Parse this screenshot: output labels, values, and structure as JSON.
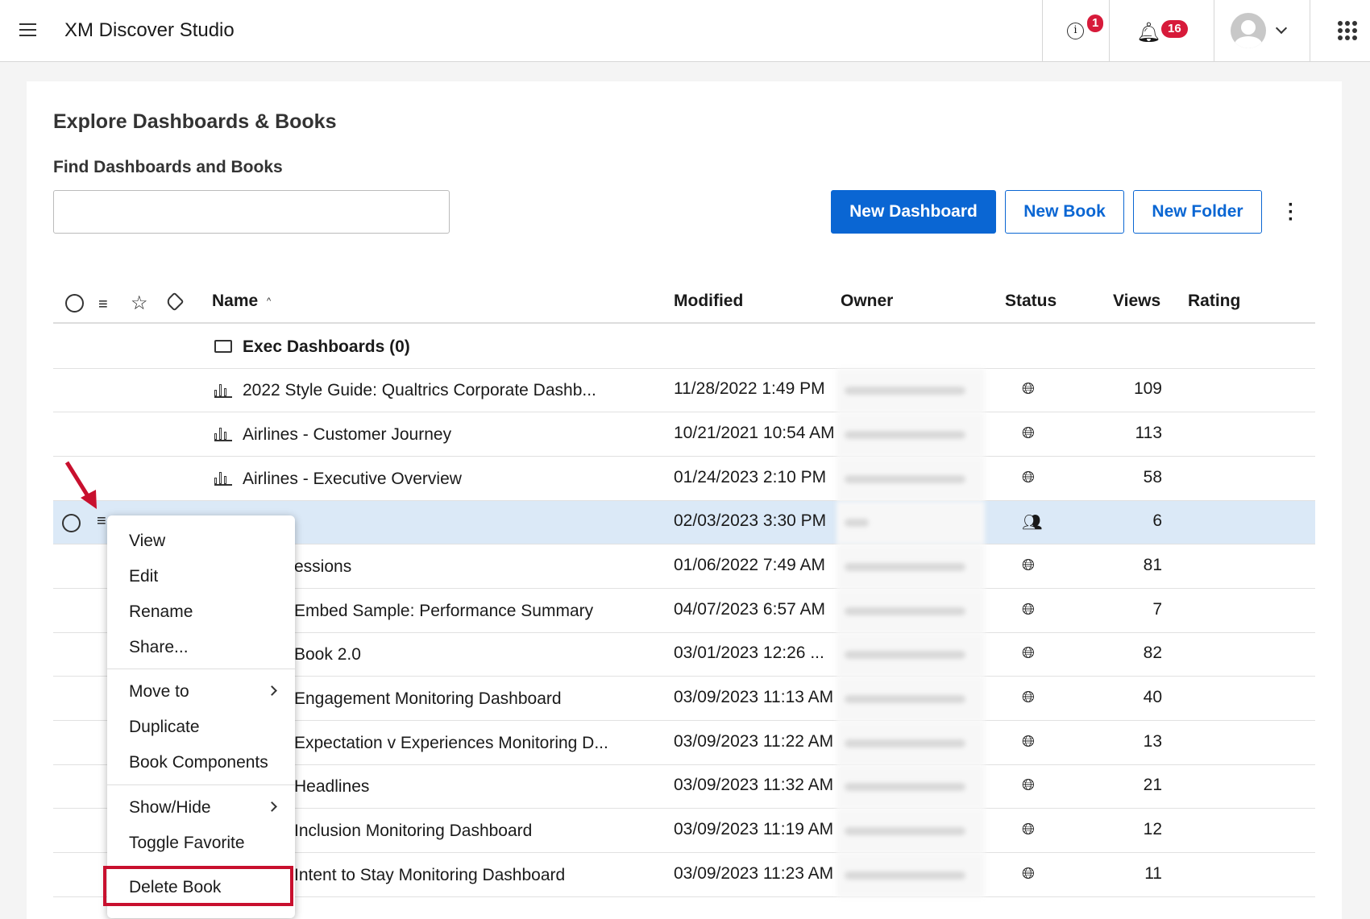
{
  "app": {
    "title": "XM Discover Studio",
    "info_badge": "1",
    "notif_badge": "16",
    "badge_color": "#d71a3a"
  },
  "page": {
    "title": "Explore Dashboards & Books",
    "search_label": "Find Dashboards and Books",
    "search_value": "",
    "search_placeholder": ""
  },
  "toolbar": {
    "new_dashboard": "New Dashboard",
    "new_book": "New Book",
    "new_folder": "New Folder",
    "accent": "#0a66d3"
  },
  "table": {
    "headers": {
      "name": "Name",
      "modified": "Modified",
      "owner": "Owner",
      "status": "Status",
      "views": "Views",
      "rating": "Rating"
    },
    "folder": {
      "name": "Exec Dashboards (0)"
    },
    "rows": [
      {
        "name": "2022 Style Guide: Qualtrics Corporate Dashb...",
        "modified": "11/28/2022 1:49 PM",
        "status": "public",
        "views": "109",
        "icon": "dashboard"
      },
      {
        "name": "Airlines - Customer Journey",
        "modified": "10/21/2021 10:54 AM",
        "status": "public",
        "views": "113",
        "icon": "dashboard"
      },
      {
        "name": "Airlines - Executive Overview",
        "modified": "01/24/2023 2:10 PM",
        "status": "public",
        "views": "58",
        "icon": "dashboard"
      },
      {
        "name": "",
        "modified": "02/03/2023 3:30 PM",
        "status": "shared",
        "views": "6",
        "icon": "book",
        "selected": true
      },
      {
        "name": "essions",
        "modified": "01/06/2022 7:49 AM",
        "status": "public",
        "views": "81"
      },
      {
        "name": "Embed Sample: Performance Summary",
        "modified": "04/07/2023 6:57 AM",
        "status": "public",
        "views": "7"
      },
      {
        "name": "Book 2.0",
        "modified": "03/01/2023 12:26 ...",
        "status": "public",
        "views": "82"
      },
      {
        "name": "Engagement Monitoring Dashboard",
        "modified": "03/09/2023 11:13 AM",
        "status": "public",
        "views": "40"
      },
      {
        "name": "Expectation v Experiences Monitoring D...",
        "modified": "03/09/2023 11:22 AM",
        "status": "public",
        "views": "13"
      },
      {
        "name": "Headlines",
        "modified": "03/09/2023 11:32 AM",
        "status": "public",
        "views": "21"
      },
      {
        "name": "Inclusion Monitoring Dashboard",
        "modified": "03/09/2023 11:19 AM",
        "status": "public",
        "views": "12"
      },
      {
        "name": "Intent to Stay Monitoring Dashboard",
        "modified": "03/09/2023 11:23 AM",
        "status": "public",
        "views": "11"
      }
    ]
  },
  "context_menu": {
    "items": [
      "View",
      "Edit",
      "Rename",
      "Share...",
      "Move to",
      "Duplicate",
      "Book Components",
      "Show/Hide",
      "Toggle Favorite",
      "Delete Book"
    ],
    "highlight_color": "#c8102e"
  }
}
